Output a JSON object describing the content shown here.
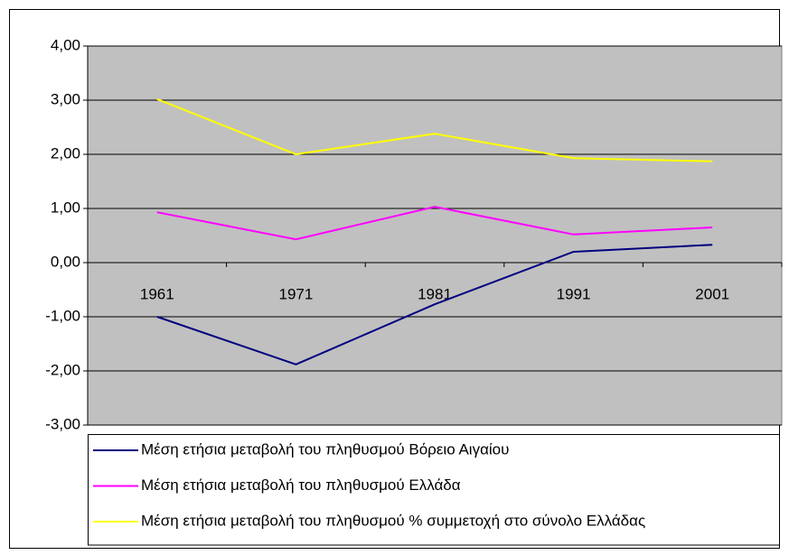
{
  "chart_data": {
    "type": "line",
    "categories": [
      "1961",
      "1971",
      "1981",
      "1991",
      "2001"
    ],
    "series": [
      {
        "name": "Μέση ετήσια μεταβολή του πληθυσμού Βόρειο Αιγαίου",
        "color": "#000080",
        "values": [
          -1.0,
          -1.88,
          -0.77,
          0.2,
          0.33
        ]
      },
      {
        "name": "Μέση ετήσια μεταβολή του πληθυσμού Ελλάδα",
        "color": "#ff00ff",
        "values": [
          0.93,
          0.43,
          1.03,
          0.52,
          0.65
        ]
      },
      {
        "name": "Μέση ετήσια μεταβολή του πληθυσμού % συμμετοχή στο σύνολο Ελλάδας",
        "color": "#ffff00",
        "values": [
          3.02,
          2.0,
          2.38,
          1.93,
          1.87
        ]
      }
    ],
    "ylim": [
      -3,
      4
    ],
    "yticks": [
      {
        "value": -3,
        "label": "-3,00"
      },
      {
        "value": -2,
        "label": "-2,00"
      },
      {
        "value": -1,
        "label": "-1,00"
      },
      {
        "value": 0,
        "label": "0,00"
      },
      {
        "value": 1,
        "label": "1,00"
      },
      {
        "value": 2,
        "label": "2,00"
      },
      {
        "value": 3,
        "label": "3,00"
      },
      {
        "value": 4,
        "label": "4,00"
      }
    ],
    "grid": true,
    "plot_background": "#c0c0c0",
    "legend": "bottom"
  }
}
